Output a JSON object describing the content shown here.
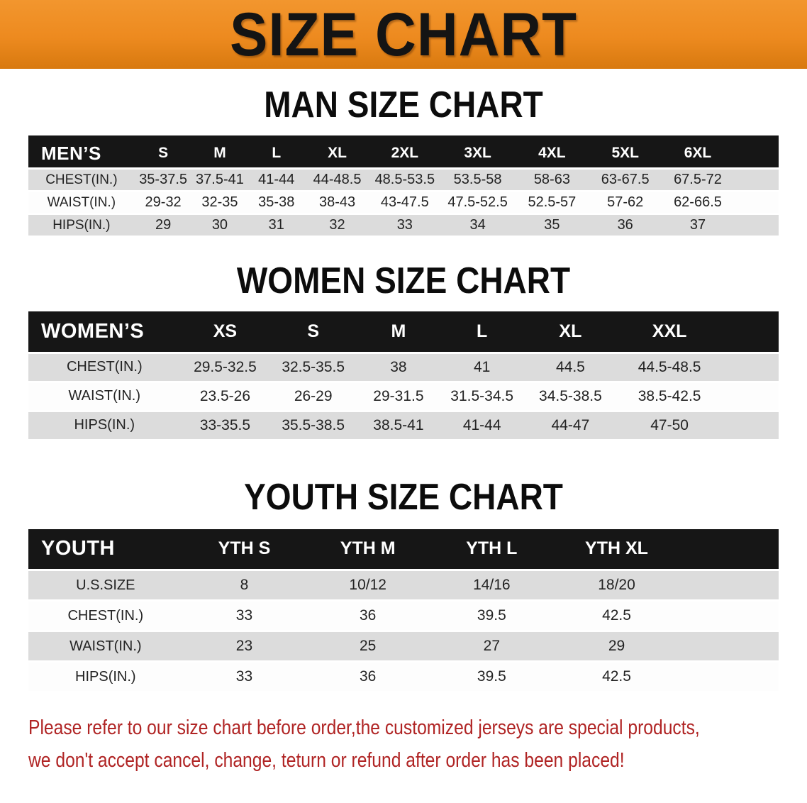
{
  "banner": {
    "title": "SIZE CHART"
  },
  "colors": {
    "banner_bg": "#ED8A1F",
    "banner_text": "#141414",
    "header_bar_bg": "#161616",
    "header_bar_text": "#FFFFFF",
    "stripe_row_bg": "#DCDCDC",
    "disclaimer_text": "#B02424"
  },
  "sections": [
    {
      "heading": "MAN SIZE CHART",
      "corner_label": "MEN’S",
      "columns": [
        "S",
        "M",
        "L",
        "XL",
        "2XL",
        "3XL",
        "4XL",
        "5XL",
        "6XL"
      ],
      "rows": [
        {
          "label": "CHEST(IN.)",
          "values": [
            "35-37.5",
            "37.5-41",
            "41-44",
            "44-48.5",
            "48.5-53.5",
            "53.5-58",
            "58-63",
            "63-67.5",
            "67.5-72"
          ]
        },
        {
          "label": "WAIST(IN.)",
          "values": [
            "29-32",
            "32-35",
            "35-38",
            "38-43",
            "43-47.5",
            "47.5-52.5",
            "52.5-57",
            "57-62",
            "62-66.5"
          ]
        },
        {
          "label": "HIPS(IN.)",
          "values": [
            "29",
            "30",
            "31",
            "32",
            "33",
            "34",
            "35",
            "36",
            "37"
          ]
        }
      ]
    },
    {
      "heading": "WOMEN SIZE CHART",
      "corner_label": "WOMEN’S",
      "columns": [
        "XS",
        "S",
        "M",
        "L",
        "XL",
        "XXL"
      ],
      "rows": [
        {
          "label": "CHEST(IN.)",
          "values": [
            "29.5-32.5",
            "32.5-35.5",
            "38",
            "41",
            "44.5",
            "44.5-48.5"
          ]
        },
        {
          "label": "WAIST(IN.)",
          "values": [
            "23.5-26",
            "26-29",
            "29-31.5",
            "31.5-34.5",
            "34.5-38.5",
            "38.5-42.5"
          ]
        },
        {
          "label": "HIPS(IN.)",
          "values": [
            "33-35.5",
            "35.5-38.5",
            "38.5-41",
            "41-44",
            "44-47",
            "47-50"
          ]
        }
      ]
    },
    {
      "heading": "YOUTH SIZE CHART",
      "corner_label": "YOUTH",
      "columns": [
        "YTH S",
        "YTH M",
        "YTH L",
        "YTH XL"
      ],
      "rows": [
        {
          "label": "U.S.SIZE",
          "values": [
            "8",
            "10/12",
            "14/16",
            "18/20"
          ]
        },
        {
          "label": "CHEST(IN.)",
          "values": [
            "33",
            "36",
            "39.5",
            "42.5"
          ]
        },
        {
          "label": "WAIST(IN.)",
          "values": [
            "23",
            "25",
            "27",
            "29"
          ]
        },
        {
          "label": "HIPS(IN.)",
          "values": [
            "33",
            "36",
            "39.5",
            "42.5"
          ]
        }
      ]
    }
  ],
  "disclaimer": {
    "lines": [
      "Please refer to our size chart before order,the customized jerseys are special products,",
      "we don't accept cancel, change, teturn or refund after order has been placed!"
    ]
  }
}
